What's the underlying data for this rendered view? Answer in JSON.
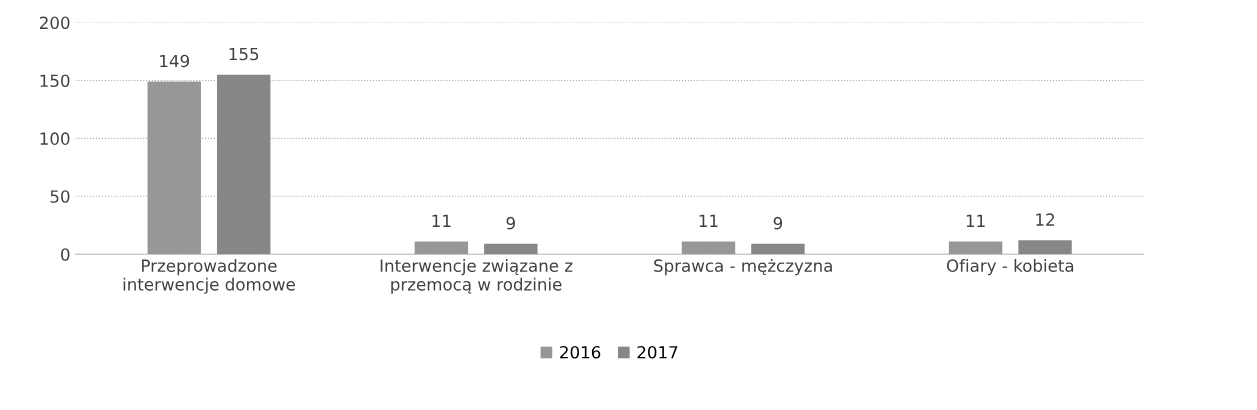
{
  "chart_data": {
    "type": "bar",
    "categories": [
      "Przeprowadzone\ninterwencje domowe",
      "Interwencje związane z\nprzemocą w rodzinie",
      "Sprawca - mężczyzna",
      "Ofiary - kobieta"
    ],
    "series": [
      {
        "name": "2016",
        "color": "#979797",
        "values": [
          149,
          11,
          11,
          11
        ]
      },
      {
        "name": "2017",
        "color": "#878787",
        "values": [
          155,
          9,
          9,
          12
        ]
      }
    ],
    "ylim": [
      0,
      200
    ],
    "yticks": [
      0,
      50,
      100,
      150,
      200
    ],
    "grid": "y",
    "legend": "bottom",
    "data_labels": true
  }
}
